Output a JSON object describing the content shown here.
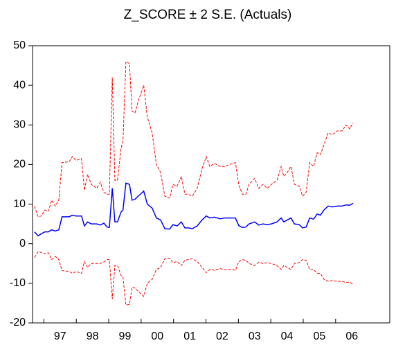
{
  "chart_data": {
    "type": "line",
    "title": "Z_SCORE ± 2 S.E. (Actuals)",
    "x": [
      1996.71,
      1996.82,
      1996.92,
      1997.03,
      1997.14,
      1997.24,
      1997.35,
      1997.46,
      1997.56,
      1997.78,
      1997.88,
      1997.99,
      1998.16,
      1998.25,
      1998.35,
      1998.46,
      1998.63,
      1998.74,
      1998.85,
      1998.95,
      1999.02,
      1999.11,
      1999.19,
      1999.27,
      1999.38,
      1999.44,
      1999.53,
      1999.64,
      1999.72,
      1999.81,
      1999.91,
      2000.08,
      2000.19,
      2000.34,
      2000.47,
      2000.6,
      2000.73,
      2000.88,
      2000.98,
      2001.11,
      2001.24,
      2001.35,
      2001.45,
      2001.58,
      2001.73,
      2001.88,
      2002.01,
      2002.12,
      2002.26,
      2002.44,
      2002.58,
      2002.73,
      2002.91,
      2003.01,
      2003.12,
      2003.23,
      2003.33,
      2003.5,
      2003.63,
      2003.76,
      2003.89,
      2004.02,
      2004.19,
      2004.32,
      2004.4,
      2004.51,
      2004.62,
      2004.73,
      2004.88,
      2004.98,
      2005.09,
      2005.2,
      2005.32,
      2005.43,
      2005.53,
      2005.64,
      2005.77,
      2005.9,
      2006.05,
      2006.2,
      2006.32,
      2006.43,
      2006.54
    ],
    "series": [
      {
        "color": "#ff0000",
        "style": "dashed",
        "values": [
          9.5,
          6.8,
          7,
          8.5,
          8.2,
          11,
          9.5,
          11,
          20.5,
          20.7,
          22,
          21,
          21.5,
          13.5,
          17.5,
          15,
          14,
          15.5,
          13,
          12.5,
          12.5,
          42,
          16,
          16,
          24,
          26,
          46,
          45.5,
          33.5,
          33,
          36,
          40,
          32,
          28,
          20,
          18,
          12,
          11.5,
          15,
          14.5,
          17,
          12.5,
          12.5,
          12,
          14,
          19,
          22,
          19.5,
          20.3,
          19.5,
          19.5,
          20,
          20.5,
          15,
          12.5,
          12.5,
          15,
          16.5,
          14,
          15,
          14,
          15,
          16,
          19.5,
          17,
          18,
          19.5,
          15,
          14.5,
          12,
          13,
          20.5,
          19.5,
          23,
          22.5,
          25,
          28,
          27.5,
          28.5,
          28.5,
          30,
          29,
          30.5
        ]
      },
      {
        "color": "#0000ff",
        "style": "solid",
        "values": [
          3,
          2,
          2.5,
          3,
          3,
          3.5,
          3.2,
          3.5,
          6.8,
          6.8,
          7.2,
          7,
          7,
          4.5,
          5.5,
          5,
          5,
          4.7,
          5.2,
          4.2,
          4.1,
          14,
          5.5,
          5.5,
          8,
          8.5,
          15.3,
          15,
          11,
          11.2,
          12,
          13.3,
          10,
          9,
          6.5,
          6,
          3.8,
          3.7,
          4.8,
          4.5,
          5.5,
          4,
          4,
          3.8,
          4.5,
          6,
          7,
          6.5,
          6.7,
          6.3,
          6.5,
          6.5,
          6.5,
          4.6,
          4.1,
          4.2,
          5,
          5.5,
          4.7,
          5,
          4.8,
          5,
          5.5,
          6.5,
          5.5,
          6,
          6.5,
          5,
          4.8,
          4,
          4.2,
          6.5,
          6.2,
          7.5,
          7.2,
          8.5,
          9.5,
          9.3,
          9.5,
          9.5,
          9.8,
          9.7,
          10.2
        ]
      },
      {
        "color": "#ff0000",
        "style": "dashed",
        "values": [
          -3.5,
          -2,
          -2.2,
          -2.5,
          -2.3,
          -4,
          -3.2,
          -4,
          -6.8,
          -7,
          -7.5,
          -7,
          -7.5,
          -4.5,
          -6,
          -5,
          -5,
          -5,
          -4.6,
          -4,
          -4,
          -14,
          -5.5,
          -5.5,
          -8,
          -8.5,
          -15.5,
          -15.3,
          -11,
          -11.2,
          -12,
          -13.3,
          -10,
          -9,
          -6.5,
          -6,
          -3.8,
          -3.7,
          -4.8,
          -4.5,
          -5.5,
          -4.2,
          -4,
          -3.8,
          -4.5,
          -6,
          -7.3,
          -6.5,
          -6.7,
          -6.3,
          -6.5,
          -6.5,
          -6.7,
          -4.6,
          -4,
          -4.2,
          -5,
          -5.5,
          -4.7,
          -5,
          -4.8,
          -5,
          -5.5,
          -6.5,
          -5.5,
          -6,
          -6.5,
          -5,
          -4.8,
          -4,
          -4.2,
          -6.5,
          -6.5,
          -7.5,
          -7.5,
          -9,
          -9.5,
          -9.3,
          -9.5,
          -9.5,
          -9.8,
          -9.7,
          -10.3
        ]
      }
    ],
    "xlim": [
      1996.65,
      2007.67
    ],
    "xticks": [
      {
        "value": 1997.5,
        "label": "97"
      },
      {
        "value": 1998.5,
        "label": "98"
      },
      {
        "value": 1999.5,
        "label": "99"
      },
      {
        "value": 2000.5,
        "label": "00"
      },
      {
        "value": 2001.5,
        "label": "01"
      },
      {
        "value": 2002.5,
        "label": "02"
      },
      {
        "value": 2003.5,
        "label": "03"
      },
      {
        "value": 2004.5,
        "label": "04"
      },
      {
        "value": 2005.5,
        "label": "05"
      },
      {
        "value": 2006.5,
        "label": "06"
      }
    ],
    "ylim": [
      -20,
      50
    ],
    "yticks": [
      -20,
      -10,
      0,
      10,
      20,
      30,
      40,
      50
    ],
    "grid": false
  }
}
